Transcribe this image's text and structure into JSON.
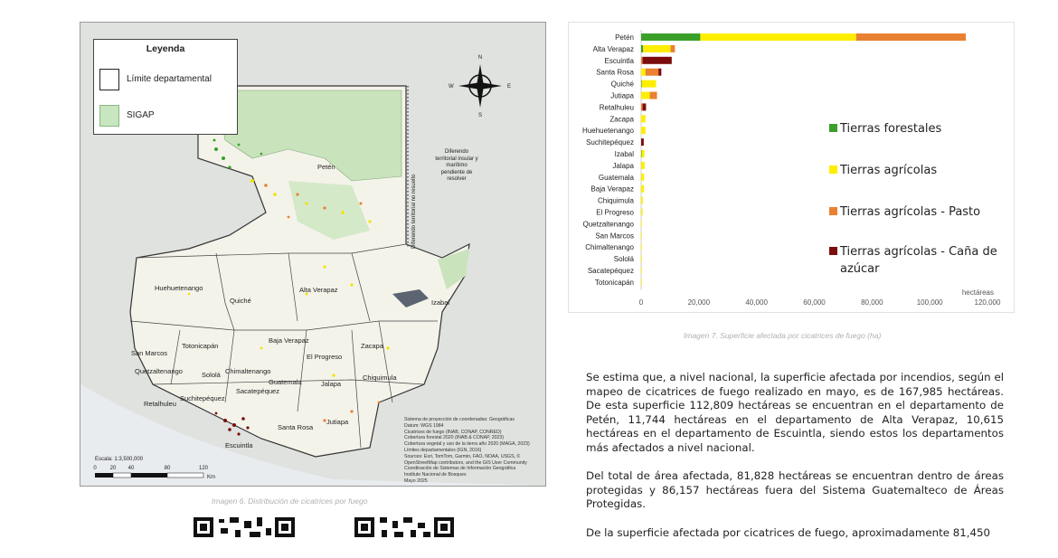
{
  "map": {
    "legend": {
      "title": "Leyenda",
      "items": [
        {
          "label": "Límite departamental",
          "swatch": "#ffffff"
        },
        {
          "label": "SIGAP",
          "swatch": "#c8e6c0"
        }
      ]
    },
    "compass": {
      "n": "N",
      "s": "S",
      "e": "E",
      "w": "W"
    },
    "departments": [
      "Petén",
      "Huehuetenango",
      "Quiché",
      "Alta Verapaz",
      "Izabal",
      "San Marcos",
      "Totonicapán",
      "Baja Verapaz",
      "El Progreso",
      "Zacapa",
      "Chiquimula",
      "Quetzaltenango",
      "Sololá",
      "Chimaltenango",
      "Guatemala",
      "Jalapa",
      "Retalhuleu",
      "Suchitepéquez",
      "Sacatepéquez",
      "Escuintla",
      "Santa Rosa",
      "Jutiapa"
    ],
    "dispute_note": "Diferendo\nterritorial insular y\nmarítimo\npendiente de\nresolver",
    "dispute_line_label": "Diferendo territorial no resuelto",
    "scale_label": "Escala: 1:3,500,000",
    "scale_ticks": [
      "0",
      "20",
      "40",
      "80",
      "120"
    ],
    "scale_unit": "Km",
    "source_note": "Sistema de proyección de coordenadas: Geográficas\nDatum: WGS 1984\nCicatrices de fuego (INAB, CONAP, CONRED)\nCobertura forestal 2020 (INAB & CONAP, 2023)\nCobertura vegetal y uso de la tierra año 2020 (MAGA, 2023)\nLímites departamentales (IGN, 2016)\nSources: Esri, TomTom, Garmin, FAO, NOAA, USGS, ©\nOpenStreetMap contributors, and the GIS User Community\nCoordinación de Sistemas de Información Geográfica\nInstituto Nacional de Bosques\nMayo 2025",
    "caption": "Imagen 6. Distribución de cicatrices por fuego"
  },
  "chart_data": {
    "type": "bar",
    "orientation": "horizontal",
    "stacked": true,
    "categories": [
      "Petén",
      "Alta Verapaz",
      "Escuintla",
      "Santa Rosa",
      "Quiché",
      "Jutiapa",
      "Retalhuleu",
      "Zacapa",
      "Huehuetenango",
      "Suchitepéquez",
      "Izabal",
      "Jalapa",
      "Guatemala",
      "Baja Verapaz",
      "Chiquimula",
      "El Progreso",
      "Quetzaltenango",
      "San Marcos",
      "Chimaltenango",
      "Sololá",
      "Sacatepéquez",
      "Totonicapán"
    ],
    "series": [
      {
        "name": "Tierras forestales",
        "color": "#3aa02a",
        "values": [
          20500,
          700,
          0,
          0,
          200,
          0,
          0,
          0,
          0,
          0,
          150,
          0,
          0,
          0,
          0,
          0,
          0,
          0,
          0,
          0,
          0,
          0
        ]
      },
      {
        "name": "Tierras agrícolas",
        "color": "#ffee00",
        "values": [
          54000,
          9500,
          0,
          1500,
          5000,
          3000,
          0,
          1500,
          1500,
          0,
          1000,
          1200,
          1000,
          1000,
          600,
          500,
          200,
          150,
          100,
          50,
          50,
          30
        ]
      },
      {
        "name": "Tierras agrícolas - Pasto",
        "color": "#e98032",
        "values": [
          38000,
          1500,
          500,
          4500,
          0,
          2500,
          500,
          0,
          0,
          0,
          0,
          0,
          0,
          0,
          0,
          0,
          0,
          0,
          0,
          0,
          0,
          0
        ]
      },
      {
        "name": "Tierras agrícolas - Caña de azúcar",
        "color": "#7b0d0d",
        "values": [
          0,
          0,
          10100,
          1000,
          0,
          0,
          1200,
          0,
          0,
          900,
          0,
          0,
          0,
          0,
          0,
          0,
          0,
          0,
          0,
          0,
          0,
          0
        ]
      }
    ],
    "xlim": [
      0,
      120000
    ],
    "xticks": [
      "0",
      "20,000",
      "40,000",
      "60,000",
      "80,000",
      "100,000",
      "120,000"
    ],
    "xlabel": "hectáreas",
    "legend_position": "right",
    "caption": "Imagen 7. Superficie afectada por cicatrices de fuego (ha)"
  },
  "text": {
    "p1": "Se estima que, a nivel nacional, la superficie afectada por incendios, según el mapeo de cicatrices de fuego realizado en mayo, es de 167,985 hectáreas. De esta superficie 112,809 hectáreas se encuentran en el departamento de Petén, 11,744 hectáreas en el departamento de Alta Verapaz, 10,615 hectáreas en el departamento de Escuintla, siendo estos los departamentos más afectados a nivel nacional.",
    "p2": "Del total de área afectada, 81,828 hectáreas se encuentran dentro de áreas protegidas y 86,157 hectáreas fuera del Sistema Guatemalteco de Áreas Protegidas.",
    "p3": "De la superficie afectada por cicatrices de fuego, aproximadamente 81,450"
  }
}
